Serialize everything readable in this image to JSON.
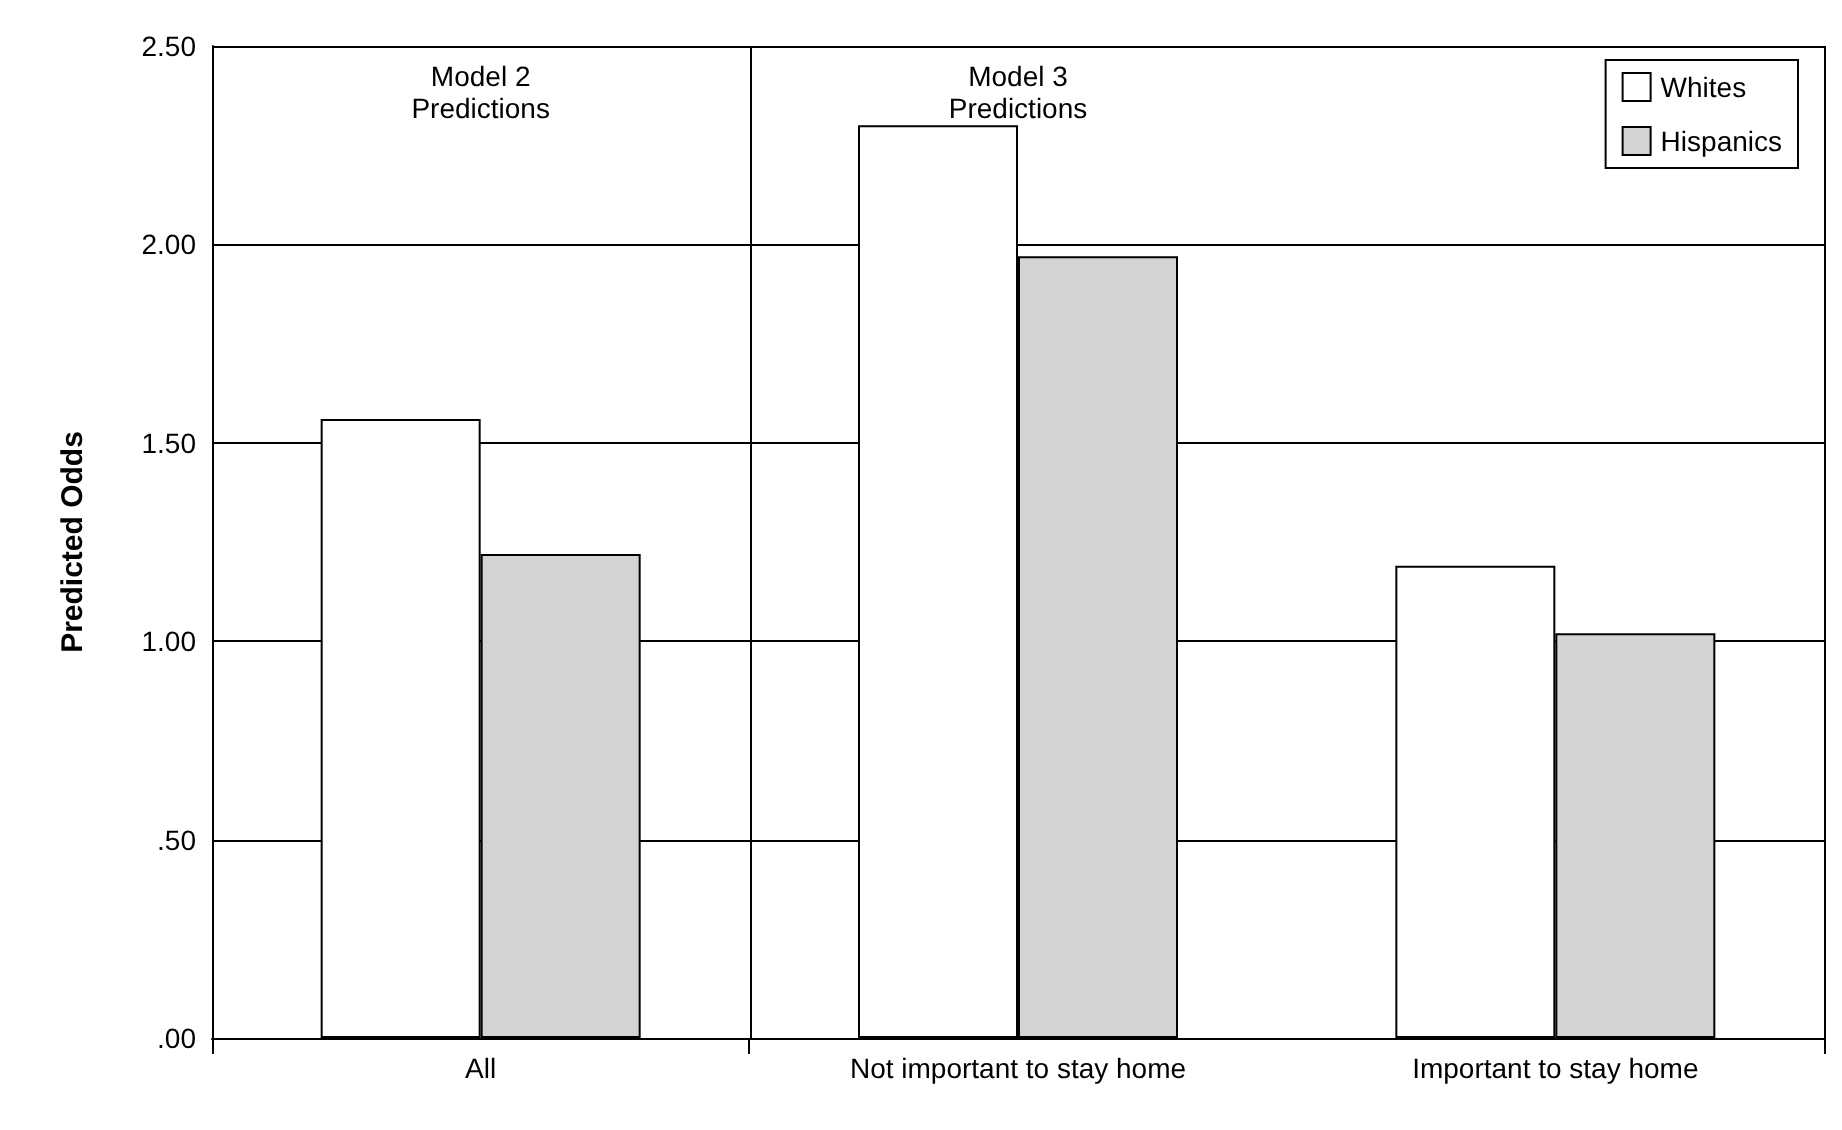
{
  "chart_data": {
    "type": "bar",
    "ylabel": "Predicted Odds",
    "categories": [
      "All",
      "Not important to stay home",
      "Important to stay home"
    ],
    "series": [
      {
        "name": "Whites",
        "color": "#ffffff",
        "values": [
          1.56,
          2.3,
          1.19
        ]
      },
      {
        "name": "Hispanics",
        "color": "#d3d3d3",
        "values": [
          1.22,
          1.97,
          1.02
        ]
      }
    ],
    "ylim": [
      0,
      2.5
    ],
    "yticks": [
      {
        "value": 0,
        "label": ".00"
      },
      {
        "value": 0.5,
        "label": ".50"
      },
      {
        "value": 1,
        "label": "1.00"
      },
      {
        "value": 1.5,
        "label": "1.50"
      },
      {
        "value": 2,
        "label": "2.00"
      },
      {
        "value": 2.5,
        "label": "2.50"
      }
    ],
    "annotations": [
      "Model 2\nPredictions",
      "Model 3\nPredictions"
    ],
    "grid": "y",
    "legend": "top right"
  }
}
